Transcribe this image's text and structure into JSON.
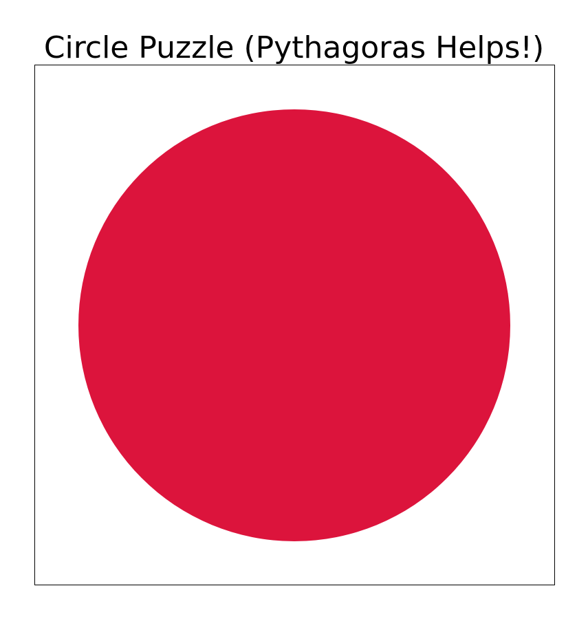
{
  "puzzle": {
    "title": "Circle Puzzle (Pythagoras Helps!)",
    "shape": "circle",
    "fill_color": "#DC143C",
    "board_background": "#FFFFFF",
    "board_border_color": "#000000"
  }
}
